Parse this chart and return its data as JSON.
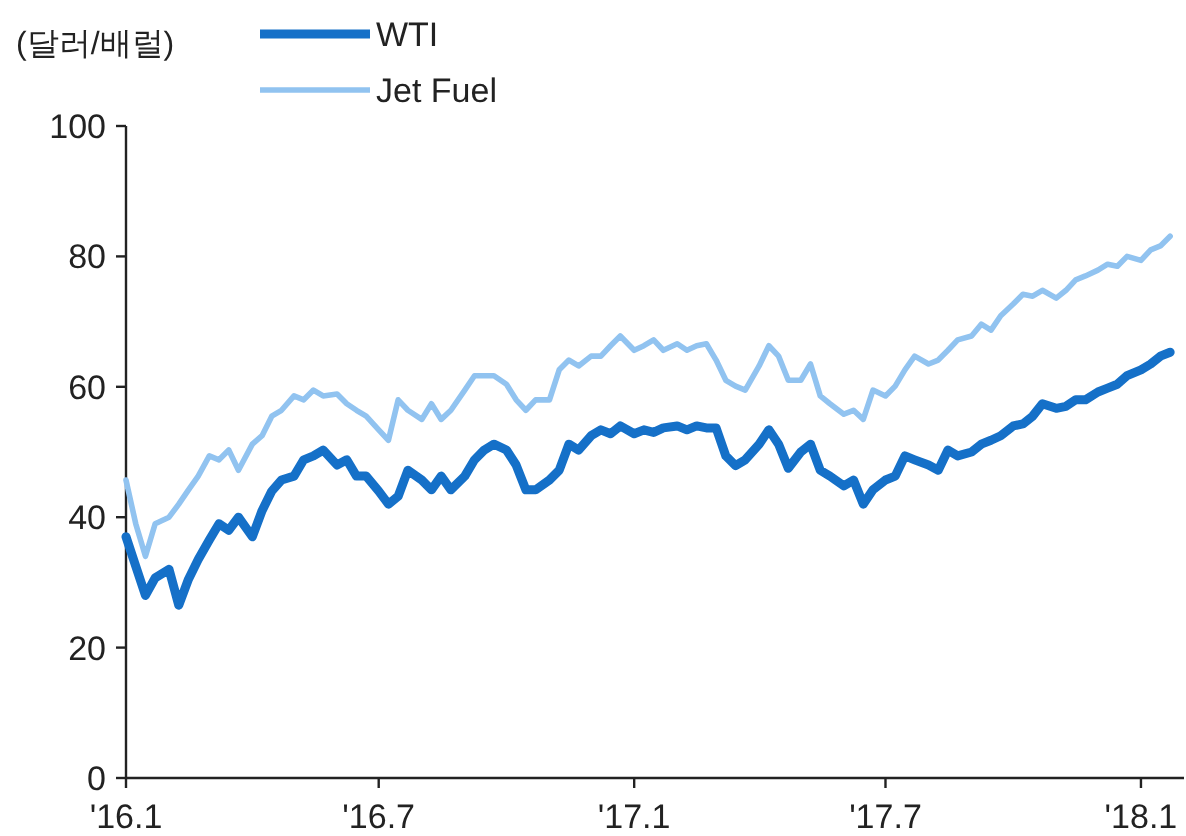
{
  "chart_data": {
    "type": "line",
    "ylabel": "(달러/배럴)",
    "x": [
      "2016-01-01",
      "2016-01-08",
      "2016-01-15",
      "2016-01-22",
      "2016-02-01",
      "2016-02-08",
      "2016-02-15",
      "2016-02-22",
      "2016-03-01",
      "2016-03-08",
      "2016-03-15",
      "2016-03-22",
      "2016-04-01",
      "2016-04-08",
      "2016-04-15",
      "2016-04-22",
      "2016-05-01",
      "2016-05-08",
      "2016-05-15",
      "2016-05-22",
      "2016-06-01",
      "2016-06-08",
      "2016-06-15",
      "2016-06-22",
      "2016-07-01",
      "2016-07-08",
      "2016-07-15",
      "2016-07-22",
      "2016-08-01",
      "2016-08-08",
      "2016-08-15",
      "2016-08-22",
      "2016-09-01",
      "2016-09-08",
      "2016-09-15",
      "2016-09-22",
      "2016-10-01",
      "2016-10-08",
      "2016-10-15",
      "2016-10-22",
      "2016-11-01",
      "2016-11-08",
      "2016-11-15",
      "2016-11-22",
      "2016-12-01",
      "2016-12-08",
      "2016-12-15",
      "2016-12-22",
      "2017-01-01",
      "2017-01-08",
      "2017-01-15",
      "2017-01-22",
      "2017-02-01",
      "2017-02-08",
      "2017-02-15",
      "2017-02-22",
      "2017-03-01",
      "2017-03-08",
      "2017-03-15",
      "2017-03-22",
      "2017-04-01",
      "2017-04-08",
      "2017-04-15",
      "2017-04-22",
      "2017-05-01",
      "2017-05-08",
      "2017-05-15",
      "2017-05-22",
      "2017-06-01",
      "2017-06-08",
      "2017-06-15",
      "2017-06-22",
      "2017-07-01",
      "2017-07-08",
      "2017-07-15",
      "2017-07-22",
      "2017-08-01",
      "2017-08-08",
      "2017-08-15",
      "2017-08-22",
      "2017-09-01",
      "2017-09-08",
      "2017-09-15",
      "2017-09-22",
      "2017-10-01",
      "2017-10-08",
      "2017-10-15",
      "2017-10-22",
      "2017-11-01",
      "2017-11-08",
      "2017-11-15",
      "2017-11-22",
      "2017-12-01",
      "2017-12-08",
      "2017-12-15",
      "2017-12-22",
      "2018-01-01",
      "2018-01-08",
      "2018-01-15",
      "2018-01-22"
    ],
    "series": [
      {
        "name": "WTI",
        "color": "#1570c8",
        "values": [
          37,
          32.5,
          28,
          30.7,
          32,
          26.5,
          30.5,
          33.5,
          36.5,
          39,
          38,
          40,
          37,
          41,
          44,
          45.7,
          46.3,
          48.8,
          49.4,
          50.3,
          48,
          48.8,
          46.3,
          46.3,
          44,
          42,
          43.2,
          47.2,
          45.7,
          44.2,
          46.3,
          44.2,
          46.3,
          48.8,
          50.3,
          51.2,
          50.3,
          48,
          44.2,
          44.2,
          45.7,
          47.2,
          51.2,
          50.3,
          52.5,
          53.4,
          52.8,
          54,
          52.8,
          53.4,
          53,
          53.7,
          54,
          53.4,
          54,
          53.7,
          53.7,
          49.4,
          47.9,
          48.8,
          51.2,
          53.4,
          51.2,
          47.5,
          50,
          51.2,
          47.2,
          46.3,
          44.8,
          45.7,
          42,
          44.2,
          45.7,
          46.3,
          49.4,
          48.8,
          48,
          47.2,
          50.3,
          49.4,
          50,
          51.2,
          51.8,
          52.5,
          54,
          54.3,
          55.5,
          57.4,
          56.7,
          57,
          58,
          58,
          59.2,
          59.8,
          60.4,
          61.7,
          62.6,
          63.5,
          64.7,
          65.3
        ]
      },
      {
        "name": "Jet Fuel",
        "color": "#91c3f0",
        "values": [
          45.7,
          39,
          34,
          39,
          40,
          42,
          44.2,
          46.3,
          49.4,
          48.8,
          50.3,
          47.2,
          51.2,
          52.5,
          55.5,
          56.4,
          58.6,
          58,
          59.5,
          58.6,
          58.9,
          57.4,
          56.4,
          55.5,
          53.4,
          51.8,
          58,
          56.4,
          55,
          57.4,
          55,
          56.4,
          59.5,
          61.7,
          61.7,
          61.7,
          60.4,
          58,
          56.4,
          58,
          58,
          62.6,
          64.1,
          63.2,
          64.7,
          64.7,
          66.3,
          67.8,
          65.6,
          66.3,
          67.2,
          65.6,
          66.6,
          65.6,
          66.3,
          66.6,
          64.1,
          61,
          60.1,
          59.5,
          63.2,
          66.3,
          64.7,
          61,
          61,
          63.5,
          58.6,
          57.4,
          55.8,
          56.4,
          55,
          59.5,
          58.6,
          60.1,
          62.6,
          64.7,
          63.5,
          64.1,
          65.6,
          67.2,
          67.8,
          69.6,
          68.7,
          70.9,
          72.7,
          74.2,
          73.9,
          74.8,
          73.6,
          74.8,
          76.4,
          77,
          77.9,
          78.8,
          78.5,
          80,
          79.4,
          81,
          81.6,
          83.1
        ]
      }
    ],
    "xlim": [
      "2016-01-01",
      "2018-02-01"
    ],
    "xticks": [
      {
        "value": "2016-01-01",
        "label": "'16.1"
      },
      {
        "value": "2016-07-01",
        "label": "'16.7"
      },
      {
        "value": "2017-01-01",
        "label": "'17.1"
      },
      {
        "value": "2017-07-01",
        "label": "'17.7"
      },
      {
        "value": "2018-01-01",
        "label": "'18.1"
      }
    ],
    "ylim": [
      0,
      100
    ],
    "yticks": [
      0,
      20,
      40,
      60,
      80,
      100
    ],
    "legend": "top left"
  }
}
